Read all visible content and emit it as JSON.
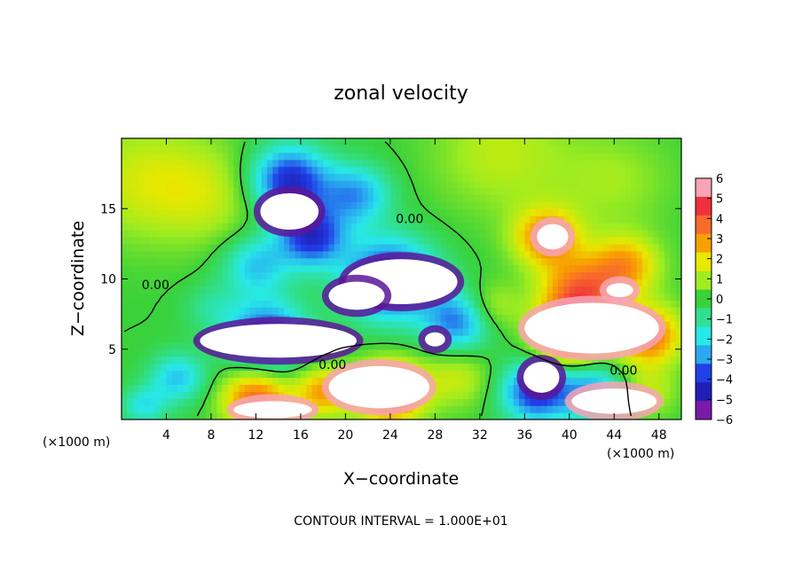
{
  "chart_data": {
    "type": "heatmap",
    "title": "zonal velocity",
    "xlabel": "X−coordinate",
    "ylabel": "Z−coordinate",
    "x_unit_left": "(×1000 m)",
    "x_unit_right": "(×1000 m)",
    "xlim": [
      0,
      50
    ],
    "ylim": [
      0,
      20
    ],
    "x_ticks": [
      4,
      8,
      12,
      16,
      20,
      24,
      28,
      32,
      36,
      40,
      44,
      48
    ],
    "x_tick_labels": [
      "4",
      "8",
      "12",
      "16",
      "20",
      "24",
      "28",
      "32",
      "36",
      "40",
      "44",
      "48"
    ],
    "y_ticks": [
      5,
      10,
      15
    ],
    "y_tick_labels": [
      "5",
      "10",
      "15"
    ],
    "contour_labels": [
      {
        "text": "0.00",
        "x": 24.5,
        "y": 14.3
      },
      {
        "text": "0.00",
        "x": 1.8,
        "y": 9.6
      },
      {
        "text": "0.00",
        "x": 17.6,
        "y": 3.9
      },
      {
        "text": "0.00",
        "x": 43.6,
        "y": 3.5
      }
    ],
    "footer": "CONTOUR INTERVAL = 1.000E+01",
    "colorbar": {
      "ticks": [
        6,
        5,
        4,
        3,
        2,
        1,
        0,
        -1,
        -2,
        -3,
        -4,
        -5,
        -6
      ],
      "tick_labels": [
        "6",
        "5",
        "4",
        "3",
        "2",
        "1",
        "0",
        "−1",
        "−2",
        "−3",
        "−4",
        "−5",
        "−6"
      ],
      "colors": [
        "#f7a4b4",
        "#f0303c",
        "#f86a2a",
        "#f8a000",
        "#e8e800",
        "#a0ec20",
        "#3ad23a",
        "#30e090",
        "#28e8e8",
        "#2aa8f0",
        "#2040e8",
        "#2020b8",
        "#7a1aa8"
      ]
    },
    "blobs": [
      {
        "x": 2,
        "y": 17,
        "v": 1.6,
        "s": 6
      },
      {
        "x": 8,
        "y": 16,
        "v": 1.2,
        "s": 5
      },
      {
        "x": 34,
        "y": 19,
        "v": 1.4,
        "s": 6
      },
      {
        "x": 44,
        "y": 17,
        "v": 1.0,
        "s": 5
      },
      {
        "x": 15,
        "y": 17,
        "v": -4.8,
        "s": 3.5
      },
      {
        "x": 17,
        "y": 13,
        "v": -4.5,
        "s": 3.0
      },
      {
        "x": 21,
        "y": 16,
        "v": -3.0,
        "s": 3.0
      },
      {
        "x": 12,
        "y": 11,
        "v": -2.5,
        "s": 3.0
      },
      {
        "x": 24,
        "y": 10,
        "v": -5.0,
        "s": 4.0
      },
      {
        "x": 13,
        "y": 6,
        "v": -4.2,
        "s": 3.5
      },
      {
        "x": 30,
        "y": 7,
        "v": -3.5,
        "s": 3.0
      },
      {
        "x": 5,
        "y": 3,
        "v": -2.5,
        "s": 2.5
      },
      {
        "x": 37,
        "y": 2,
        "v": -4.5,
        "s": 3.0
      },
      {
        "x": 42,
        "y": 2,
        "v": -3.0,
        "s": 3.0
      },
      {
        "x": 2,
        "y": 1,
        "v": -2.0,
        "s": 2.0
      },
      {
        "x": 38,
        "y": 13,
        "v": 3.5,
        "s": 3.0
      },
      {
        "x": 41,
        "y": 9,
        "v": 4.0,
        "s": 3.5
      },
      {
        "x": 45,
        "y": 11,
        "v": 3.0,
        "s": 3.0
      },
      {
        "x": 40,
        "y": 6,
        "v": 5.0,
        "s": 3.0
      },
      {
        "x": 47,
        "y": 6,
        "v": 4.0,
        "s": 3.0
      },
      {
        "x": 24,
        "y": 2,
        "v": 5.0,
        "s": 3.0
      },
      {
        "x": 12,
        "y": 1.5,
        "v": 4.0,
        "s": 3.0
      },
      {
        "x": 18,
        "y": 2,
        "v": 3.0,
        "s": 2.5
      },
      {
        "x": 30,
        "y": 3,
        "v": 1.5,
        "s": 3.0
      },
      {
        "x": 47,
        "y": 2,
        "v": 1.5,
        "s": 2.5
      },
      {
        "x": 8,
        "y": 8,
        "v": -1.0,
        "s": 2.5
      },
      {
        "x": 33,
        "y": 8,
        "v": 1.5,
        "s": 2.5
      }
    ],
    "saturated_regions": [
      {
        "x": 15,
        "y": 14.8,
        "rx": 2.6,
        "ry": 1.3,
        "v": -6
      },
      {
        "x": 14,
        "y": 5.6,
        "rx": 7,
        "ry": 1.2,
        "v": -6
      },
      {
        "x": 25,
        "y": 9.8,
        "rx": 5,
        "ry": 1.6,
        "v": -6
      },
      {
        "x": 21,
        "y": 8.8,
        "rx": 2.5,
        "ry": 1.0,
        "v": -6
      },
      {
        "x": 28,
        "y": 5.7,
        "rx": 0.9,
        "ry": 0.5,
        "v": -6
      },
      {
        "x": 37.5,
        "y": 3.0,
        "rx": 1.6,
        "ry": 1.1,
        "v": -6
      },
      {
        "x": 23,
        "y": 2.3,
        "rx": 4.5,
        "ry": 1.5,
        "v": 6
      },
      {
        "x": 13.5,
        "y": 0.7,
        "rx": 3.5,
        "ry": 0.6,
        "v": 6
      },
      {
        "x": 42,
        "y": 6.5,
        "rx": 6,
        "ry": 1.8,
        "v": 6
      },
      {
        "x": 38.5,
        "y": 13.0,
        "rx": 1.4,
        "ry": 0.9,
        "v": 6
      },
      {
        "x": 44,
        "y": 1.3,
        "rx": 3.8,
        "ry": 0.9,
        "v": 6
      },
      {
        "x": 44.5,
        "y": 9.2,
        "rx": 1.2,
        "ry": 0.5,
        "v": 6
      }
    ]
  }
}
